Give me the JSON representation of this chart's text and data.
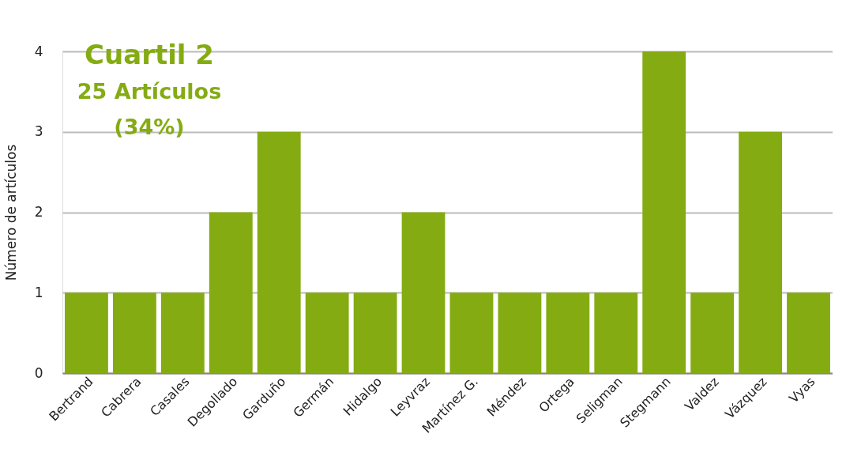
{
  "chart_data": {
    "type": "bar",
    "ylabel": "Número de artículos",
    "categories": [
      "Bertrand",
      "Cabrera",
      "Casales",
      "Degollado",
      "Garduño",
      "Germán",
      "Hidalgo",
      "Leyvraz",
      "Martínez G.",
      "Méndez",
      "Ortega",
      "Seligman",
      "Stegmann",
      "Valdez",
      "Vázquez",
      "Vyas"
    ],
    "values": [
      1,
      1,
      1,
      2,
      3,
      1,
      1,
      2,
      1,
      1,
      1,
      1,
      4,
      1,
      3,
      1
    ],
    "color": "#84ac12",
    "ylim": [
      0,
      4
    ],
    "yticks": [
      0,
      1,
      2,
      3,
      4
    ],
    "grid": "y",
    "annotations": [
      "Cuartil 2",
      "25 Artículos",
      "(34%)"
    ]
  }
}
